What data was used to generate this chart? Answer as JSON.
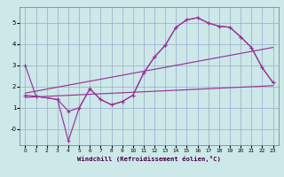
{
  "xlabel": "Windchill (Refroidissement éolien,°C)",
  "background_color": "#cce8e8",
  "grid_color": "#99aacc",
  "line_color": "#993399",
  "xlim": [
    -0.5,
    23.5
  ],
  "ylim": [
    -0.75,
    5.75
  ],
  "xticks": [
    0,
    1,
    2,
    3,
    4,
    5,
    6,
    7,
    8,
    9,
    10,
    11,
    12,
    13,
    14,
    15,
    16,
    17,
    18,
    19,
    20,
    21,
    22,
    23
  ],
  "yticks": [
    0,
    1,
    2,
    3,
    4,
    5
  ],
  "ytick_labels": [
    "-0",
    "1",
    "2",
    "3",
    "4",
    "5"
  ],
  "curve1_x": [
    0,
    1,
    3,
    4,
    5,
    6,
    7,
    8,
    9,
    10,
    11,
    12,
    13,
    14,
    15,
    16,
    17,
    18,
    19,
    20,
    21,
    22,
    23
  ],
  "curve1_y": [
    3.0,
    1.55,
    1.4,
    0.85,
    1.0,
    1.9,
    1.4,
    1.15,
    1.3,
    1.6,
    2.65,
    3.4,
    3.95,
    4.8,
    5.15,
    5.25,
    5.0,
    4.85,
    4.8,
    4.35,
    3.85,
    2.9,
    2.2
  ],
  "curve2_x": [
    0,
    1,
    3,
    4,
    5,
    6,
    7,
    8,
    9,
    10,
    11,
    12,
    13,
    14,
    15,
    16,
    17,
    18,
    19,
    20,
    21,
    22,
    23
  ],
  "curve2_y": [
    1.6,
    1.55,
    1.4,
    -0.55,
    1.0,
    1.9,
    1.4,
    1.15,
    1.3,
    1.6,
    2.65,
    3.4,
    3.95,
    4.8,
    5.15,
    5.25,
    5.0,
    4.85,
    4.8,
    4.35,
    3.85,
    2.9,
    2.2
  ],
  "line3_x": [
    0,
    23
  ],
  "line3_y": [
    1.5,
    2.05
  ],
  "line4_x": [
    0,
    23
  ],
  "line4_y": [
    1.7,
    3.85
  ]
}
